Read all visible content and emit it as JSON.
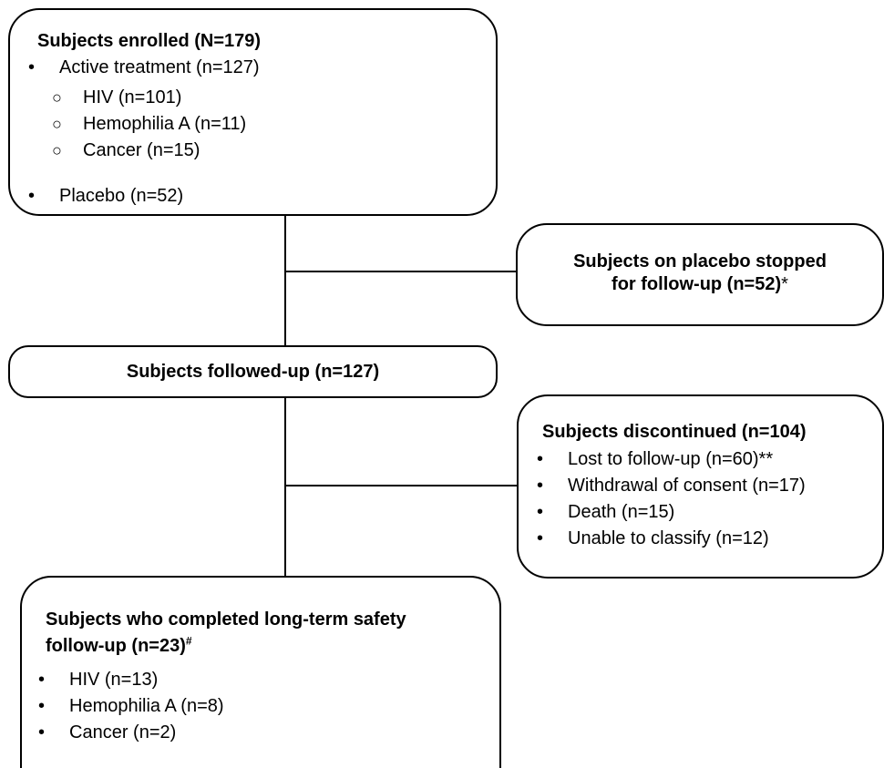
{
  "enrolled": {
    "title": "Subjects enrolled (N=179)",
    "active": "Active treatment (n=127)",
    "sub": [
      "HIV (n=101)",
      "Hemophilia A (n=11)",
      "Cancer (n=15)"
    ],
    "placebo": "Placebo (n=52)"
  },
  "placebo_stopped": {
    "line1": "Subjects on placebo stopped",
    "line2": "for follow-up (n=52)",
    "mark": "*"
  },
  "followed": {
    "title": "Subjects followed-up (n=127)"
  },
  "discontinued": {
    "title": "Subjects discontinued (n=104)",
    "items": [
      "Lost to follow-up (n=60)**",
      "Withdrawal of consent (n=17)",
      "Death (n=15)",
      "Unable to classify (n=12)"
    ]
  },
  "completed": {
    "title_line1": "Subjects who completed long-term safety",
    "title_line2": "follow-up (n=23)",
    "mark": "#",
    "items": [
      "HIV (n=13)",
      "Hemophilia A (n=8)",
      "Cancer (n=2)"
    ]
  }
}
